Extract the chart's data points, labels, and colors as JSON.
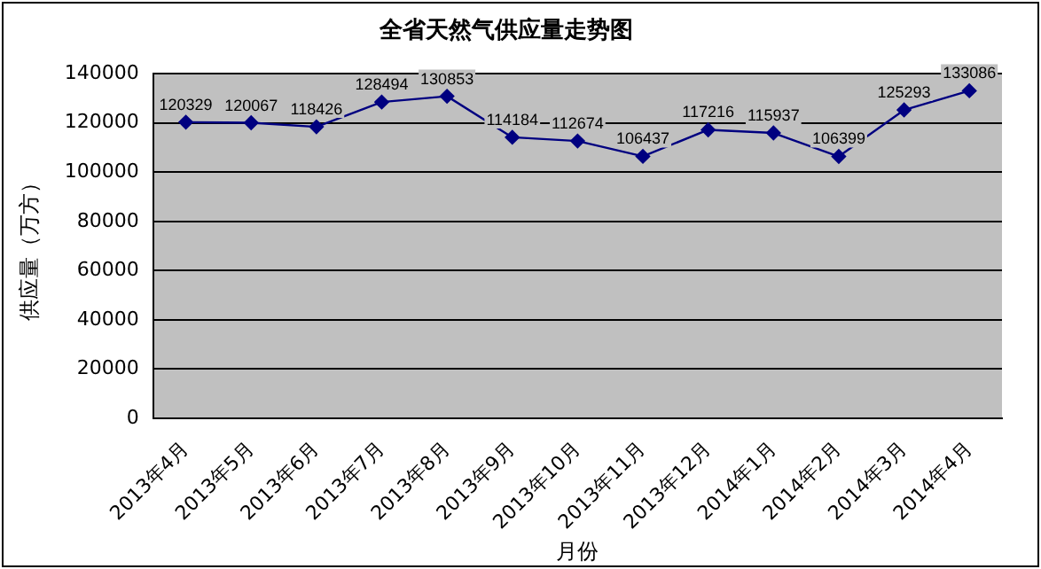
{
  "chart_data": {
    "type": "line",
    "title": "全省天然气供应量走势图",
    "xlabel": "月份",
    "ylabel": "供应量（万方）",
    "categories": [
      "2013年4月",
      "2013年5月",
      "2013年6月",
      "2013年7月",
      "2013年8月",
      "2013年9月",
      "2013年10月",
      "2013年11月",
      "2013年12月",
      "2014年1月",
      "2014年2月",
      "2014年3月",
      "2014年4月"
    ],
    "series": [
      {
        "color": "#000080",
        "values": [
          120329,
          120067,
          118426,
          128494,
          130853,
          114184,
          112674,
          106437,
          117216,
          115937,
          106399,
          125293,
          133086
        ]
      }
    ],
    "ylim": [
      0,
      140000
    ],
    "yticks": [
      0,
      20000,
      40000,
      60000,
      80000,
      100000,
      120000,
      140000
    ],
    "grid": "y",
    "legend": false,
    "marker": "diamond",
    "line_style": "solid",
    "data_labels": true
  }
}
